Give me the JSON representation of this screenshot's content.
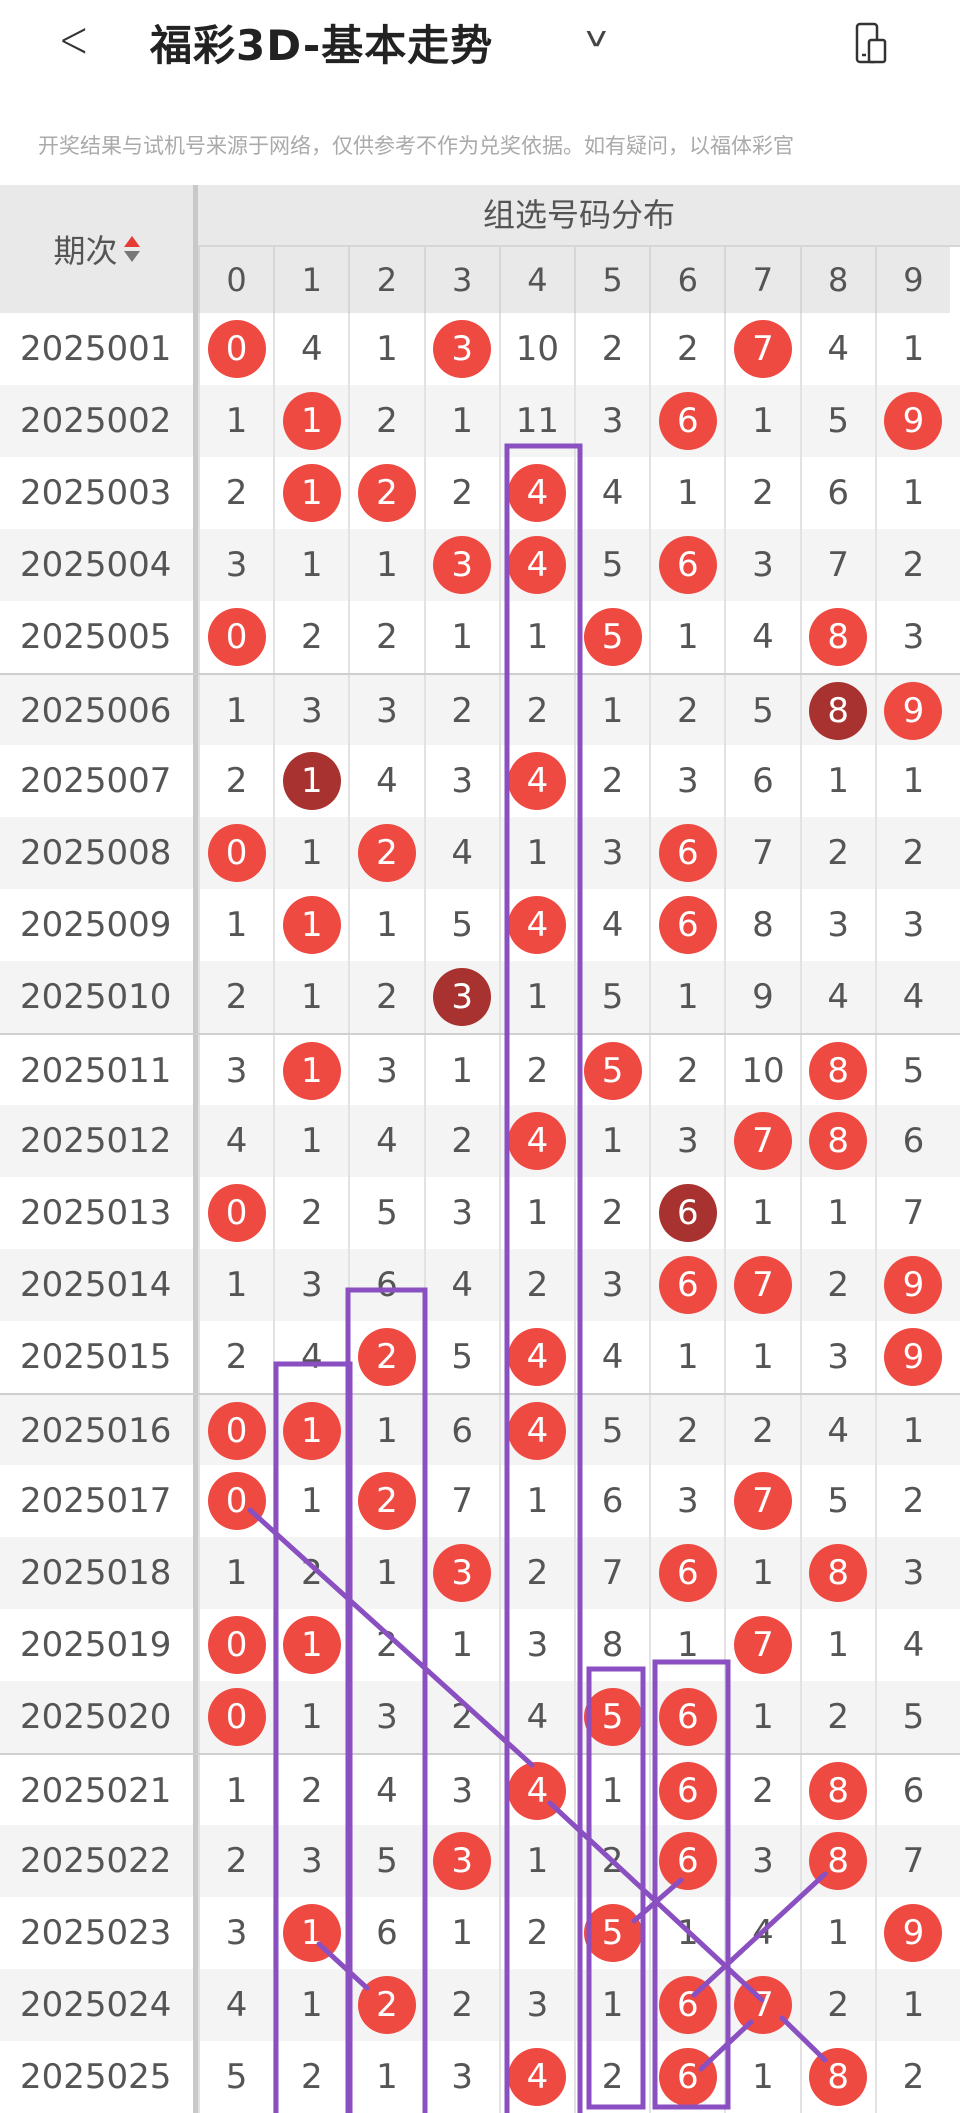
{
  "header": {
    "title": "福彩3D-基本走势",
    "back_icon": "back-chevron-icon",
    "dropdown_icon": "chevron-down-icon",
    "device_icon": "device-switch-icon"
  },
  "notice": "开奖结果与试机号来源于网络，仅供参考不作为兑奖依据。如有疑问，以福体彩官",
  "table": {
    "period_header": "期次",
    "group_header": "组选号码分布",
    "digits": [
      "0",
      "1",
      "2",
      "3",
      "4",
      "5",
      "6",
      "7",
      "8",
      "9"
    ],
    "colors": {
      "hit": "#ef4a42",
      "repeat_hit": "#a8322f",
      "annotation": "#8a4fc0"
    },
    "rows": [
      {
        "period": "2025001",
        "cells": [
          "0",
          "4",
          "1",
          "3",
          "10",
          "2",
          "2",
          "7",
          "4",
          "1"
        ],
        "marks": [
          "h",
          "",
          "",
          "h",
          "",
          "",
          "",
          "h",
          "",
          ""
        ]
      },
      {
        "period": "2025002",
        "cells": [
          "1",
          "1",
          "2",
          "1",
          "11",
          "3",
          "6",
          "1",
          "5",
          "9"
        ],
        "marks": [
          "",
          "h",
          "",
          "",
          "",
          "",
          "h",
          "",
          "",
          "h"
        ]
      },
      {
        "period": "2025003",
        "cells": [
          "2",
          "1",
          "2",
          "2",
          "4",
          "4",
          "1",
          "2",
          "6",
          "1"
        ],
        "marks": [
          "",
          "h",
          "h",
          "",
          "h",
          "",
          "",
          "",
          "",
          ""
        ]
      },
      {
        "period": "2025004",
        "cells": [
          "3",
          "1",
          "1",
          "3",
          "4",
          "5",
          "6",
          "3",
          "7",
          "2"
        ],
        "marks": [
          "",
          "",
          "",
          "h",
          "h",
          "",
          "h",
          "",
          "",
          ""
        ]
      },
      {
        "period": "2025005",
        "cells": [
          "0",
          "2",
          "2",
          "1",
          "1",
          "5",
          "1",
          "4",
          "8",
          "3"
        ],
        "marks": [
          "h",
          "",
          "",
          "",
          "",
          "h",
          "",
          "",
          "h",
          ""
        ]
      },
      {
        "period": "2025006",
        "cells": [
          "1",
          "3",
          "3",
          "2",
          "2",
          "1",
          "2",
          "5",
          "8",
          "9"
        ],
        "marks": [
          "",
          "",
          "",
          "",
          "",
          "",
          "",
          "",
          "d",
          "h"
        ]
      },
      {
        "period": "2025007",
        "cells": [
          "2",
          "1",
          "4",
          "3",
          "4",
          "2",
          "3",
          "6",
          "1",
          "1"
        ],
        "marks": [
          "",
          "d",
          "",
          "",
          "h",
          "",
          "",
          "",
          "",
          ""
        ]
      },
      {
        "period": "2025008",
        "cells": [
          "0",
          "1",
          "2",
          "4",
          "1",
          "3",
          "6",
          "7",
          "2",
          "2"
        ],
        "marks": [
          "h",
          "",
          "h",
          "",
          "",
          "",
          "h",
          "",
          "",
          ""
        ]
      },
      {
        "period": "2025009",
        "cells": [
          "1",
          "1",
          "1",
          "5",
          "4",
          "4",
          "6",
          "8",
          "3",
          "3"
        ],
        "marks": [
          "",
          "h",
          "",
          "",
          "h",
          "",
          "h",
          "",
          "",
          ""
        ]
      },
      {
        "period": "2025010",
        "cells": [
          "2",
          "1",
          "2",
          "3",
          "1",
          "5",
          "1",
          "9",
          "4",
          "4"
        ],
        "marks": [
          "",
          "",
          "",
          "d",
          "",
          "",
          "",
          "",
          "",
          ""
        ]
      },
      {
        "period": "2025011",
        "cells": [
          "3",
          "1",
          "3",
          "1",
          "2",
          "5",
          "2",
          "10",
          "8",
          "5"
        ],
        "marks": [
          "",
          "h",
          "",
          "",
          "",
          "h",
          "",
          "",
          "h",
          ""
        ]
      },
      {
        "period": "2025012",
        "cells": [
          "4",
          "1",
          "4",
          "2",
          "4",
          "1",
          "3",
          "7",
          "8",
          "6"
        ],
        "marks": [
          "",
          "",
          "",
          "",
          "h",
          "",
          "",
          "h",
          "h",
          ""
        ]
      },
      {
        "period": "2025013",
        "cells": [
          "0",
          "2",
          "5",
          "3",
          "1",
          "2",
          "6",
          "1",
          "1",
          "7"
        ],
        "marks": [
          "h",
          "",
          "",
          "",
          "",
          "",
          "d",
          "",
          "",
          ""
        ]
      },
      {
        "period": "2025014",
        "cells": [
          "1",
          "3",
          "6",
          "4",
          "2",
          "3",
          "6",
          "7",
          "2",
          "9"
        ],
        "marks": [
          "",
          "",
          "",
          "",
          "",
          "",
          "h",
          "h",
          "",
          "h"
        ]
      },
      {
        "period": "2025015",
        "cells": [
          "2",
          "4",
          "2",
          "5",
          "4",
          "4",
          "1",
          "1",
          "3",
          "9"
        ],
        "marks": [
          "",
          "",
          "h",
          "",
          "h",
          "",
          "",
          "",
          "",
          "h"
        ]
      },
      {
        "period": "2025016",
        "cells": [
          "0",
          "1",
          "1",
          "6",
          "4",
          "5",
          "2",
          "2",
          "4",
          "1"
        ],
        "marks": [
          "h",
          "h",
          "",
          "",
          "h",
          "",
          "",
          "",
          "",
          ""
        ]
      },
      {
        "period": "2025017",
        "cells": [
          "0",
          "1",
          "2",
          "7",
          "1",
          "6",
          "3",
          "7",
          "5",
          "2"
        ],
        "marks": [
          "h",
          "",
          "h",
          "",
          "",
          "",
          "",
          "h",
          "",
          ""
        ]
      },
      {
        "period": "2025018",
        "cells": [
          "1",
          "2",
          "1",
          "3",
          "2",
          "7",
          "6",
          "1",
          "8",
          "3"
        ],
        "marks": [
          "",
          "",
          "",
          "h",
          "",
          "",
          "h",
          "",
          "h",
          ""
        ]
      },
      {
        "period": "2025019",
        "cells": [
          "0",
          "1",
          "2",
          "1",
          "3",
          "8",
          "1",
          "7",
          "1",
          "4"
        ],
        "marks": [
          "h",
          "h",
          "",
          "",
          "",
          "",
          "",
          "h",
          "",
          ""
        ]
      },
      {
        "period": "2025020",
        "cells": [
          "0",
          "1",
          "3",
          "2",
          "4",
          "5",
          "6",
          "1",
          "2",
          "5"
        ],
        "marks": [
          "h",
          "",
          "",
          "",
          "",
          "h",
          "h",
          "",
          "",
          ""
        ]
      },
      {
        "period": "2025021",
        "cells": [
          "1",
          "2",
          "4",
          "3",
          "4",
          "1",
          "6",
          "2",
          "8",
          "6"
        ],
        "marks": [
          "",
          "",
          "",
          "",
          "h",
          "",
          "h",
          "",
          "h",
          ""
        ]
      },
      {
        "period": "2025022",
        "cells": [
          "2",
          "3",
          "5",
          "3",
          "1",
          "2",
          "6",
          "3",
          "8",
          "7"
        ],
        "marks": [
          "",
          "",
          "",
          "h",
          "",
          "",
          "h",
          "",
          "h",
          ""
        ]
      },
      {
        "period": "2025023",
        "cells": [
          "3",
          "1",
          "6",
          "1",
          "2",
          "5",
          "1",
          "4",
          "1",
          "9"
        ],
        "marks": [
          "",
          "h",
          "",
          "",
          "",
          "h",
          "",
          "",
          "",
          "h"
        ]
      },
      {
        "period": "2025024",
        "cells": [
          "4",
          "1",
          "2",
          "2",
          "3",
          "1",
          "6",
          "7",
          "2",
          "1"
        ],
        "marks": [
          "",
          "",
          "h",
          "",
          "",
          "",
          "h",
          "h",
          "",
          ""
        ]
      },
      {
        "period": "2025025",
        "cells": [
          "5",
          "2",
          "1",
          "3",
          "4",
          "2",
          "6",
          "1",
          "8",
          "2"
        ],
        "marks": [
          "",
          "",
          "",
          "",
          "h",
          "",
          "h",
          "",
          "h",
          ""
        ]
      }
    ]
  }
}
